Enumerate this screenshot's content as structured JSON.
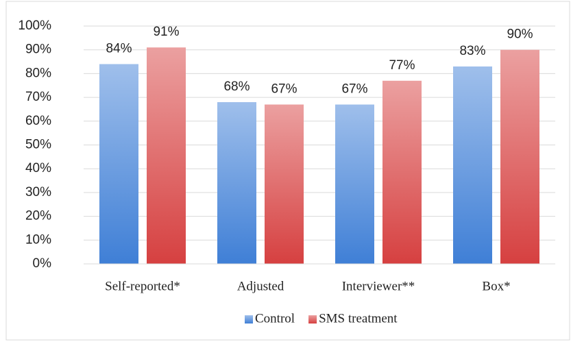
{
  "chart_data": {
    "type": "bar",
    "categories": [
      "Self-reported*",
      "Adjusted",
      "Interviewer**",
      "Box*"
    ],
    "series": [
      {
        "name": "Control",
        "color": "#3f7fd6",
        "values": [
          84,
          68,
          67,
          83
        ],
        "value_labels": [
          "84%",
          "68%",
          "67%",
          "83%"
        ]
      },
      {
        "name": "SMS treatment",
        "color": "#d64040",
        "values": [
          91,
          67,
          77,
          90
        ],
        "value_labels": [
          "91%",
          "67%",
          "77%",
          "90%"
        ]
      }
    ],
    "ylim": [
      0,
      100
    ],
    "yticks": [
      {
        "value": 0,
        "label": "0%"
      },
      {
        "value": 10,
        "label": "10%"
      },
      {
        "value": 20,
        "label": "20%"
      },
      {
        "value": 30,
        "label": "30%"
      },
      {
        "value": 40,
        "label": "40%"
      },
      {
        "value": 50,
        "label": "50%"
      },
      {
        "value": 60,
        "label": "60%"
      },
      {
        "value": 70,
        "label": "70%"
      },
      {
        "value": 80,
        "label": "80%"
      },
      {
        "value": 90,
        "label": "90%"
      },
      {
        "value": 100,
        "label": "100%"
      }
    ],
    "grid": true,
    "legend": "bottom"
  }
}
